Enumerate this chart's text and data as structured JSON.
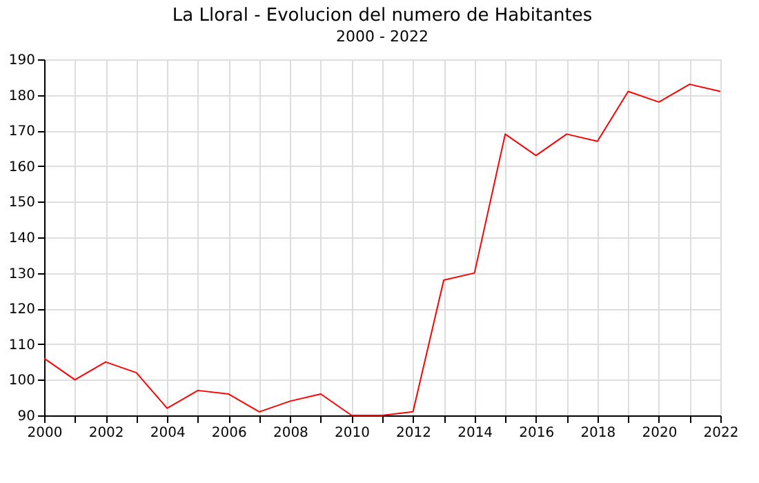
{
  "chart_data": {
    "type": "line",
    "title": "La Lloral - Evolucion del numero de Habitantes",
    "subtitle": "2000 - 2022",
    "x": [
      2000,
      2001,
      2002,
      2003,
      2004,
      2005,
      2006,
      2007,
      2008,
      2009,
      2010,
      2011,
      2012,
      2013,
      2014,
      2015,
      2016,
      2017,
      2018,
      2019,
      2020,
      2021,
      2022
    ],
    "series": [
      {
        "color": "#ff0000",
        "values": [
          106,
          100,
          105,
          102,
          92,
          97,
          96,
          91,
          94,
          96,
          90,
          90,
          91,
          128,
          130,
          169,
          163,
          169,
          167,
          181,
          178,
          183,
          181
        ]
      }
    ],
    "xlim": [
      2000,
      2022
    ],
    "xticks": [
      2000,
      {
        "value": 2001,
        "label": null
      },
      2002,
      {
        "value": 2003,
        "label": null
      },
      2004,
      {
        "value": 2005,
        "label": null
      },
      2006,
      {
        "value": 2007,
        "label": null
      },
      2008,
      {
        "value": 2009,
        "label": null
      },
      2010,
      {
        "value": 2011,
        "label": null
      },
      2012,
      {
        "value": 2013,
        "label": null
      },
      2014,
      {
        "value": 2015,
        "label": null
      },
      2016,
      {
        "value": 2017,
        "label": null
      },
      2018,
      {
        "value": 2019,
        "label": null
      },
      2020,
      {
        "value": 2021,
        "label": null
      },
      2022
    ],
    "ylim": [
      90,
      190
    ],
    "yticks": [
      90,
      100,
      110,
      120,
      130,
      140,
      150,
      160,
      170,
      180,
      190
    ],
    "grid": true,
    "marker": "none",
    "line_style": "solid"
  }
}
